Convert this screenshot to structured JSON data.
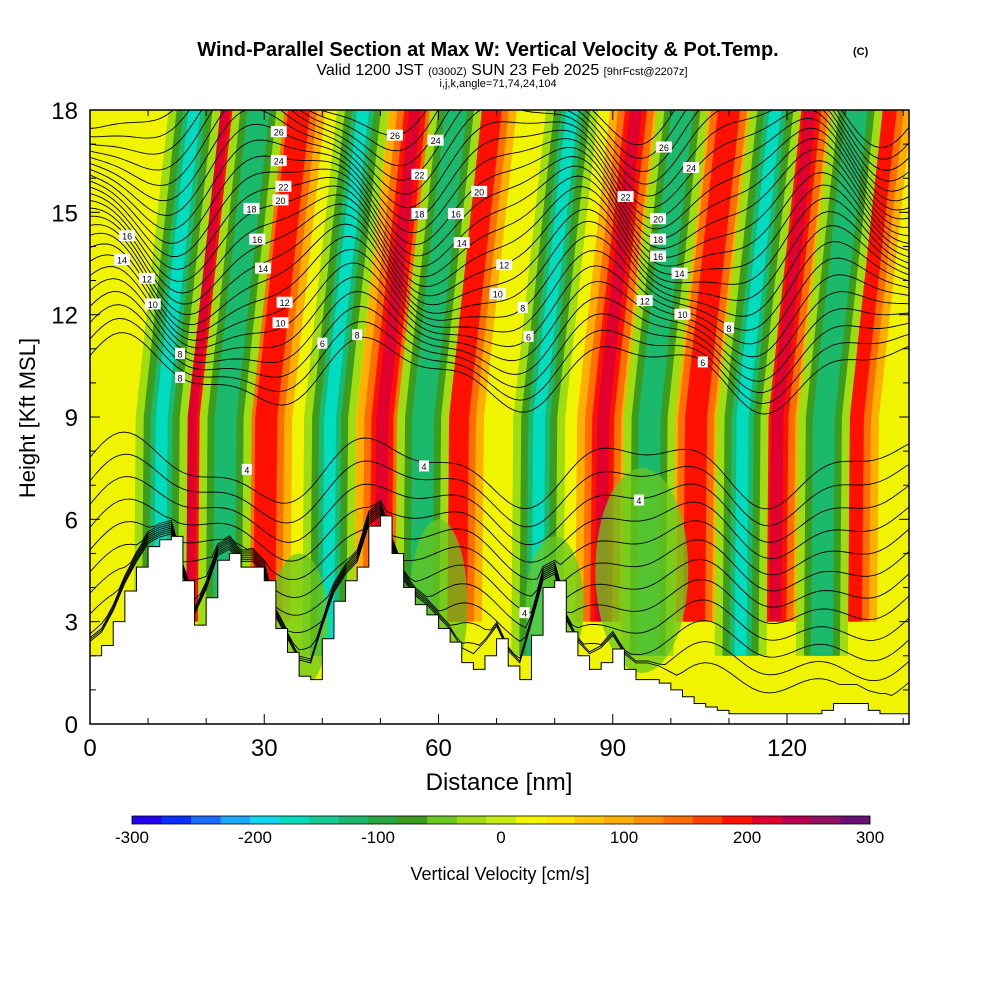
{
  "chart_data": {
    "type": "heatmap",
    "title": "Wind-Parallel Section at Max W: Vertical Velocity & Pot.Temp.",
    "title_mark": "(C)",
    "subtitle_parts": [
      "Valid 1200 JST",
      "(0300Z)",
      "SUN 23 Feb 2025",
      "[9hrFcst@2207z]"
    ],
    "index_line": "i,j,k,angle=71,74,24,104",
    "xlabel": "Distance [nm]",
    "ylabel": "Height [Kft MSL]",
    "xlim": [
      0,
      141
    ],
    "ylim": [
      0,
      18
    ],
    "x_ticks": [
      0,
      30,
      60,
      90,
      120
    ],
    "y_ticks": [
      0,
      3,
      6,
      9,
      12,
      15,
      18
    ],
    "fill_variable": "Vertical Velocity [cm/s]",
    "contour_variable": "Potential temperature (labelled contours)",
    "colorbar": {
      "label": "Vertical Velocity [cm/s]",
      "range": [
        -300,
        300
      ],
      "ticks": [
        "-300",
        "-200",
        "-100",
        "0",
        "100",
        "200",
        "300"
      ],
      "colors": [
        "#2400f0",
        "#0a30ff",
        "#1a6cff",
        "#1aa8ff",
        "#12d8f2",
        "#00dcc0",
        "#16cc96",
        "#1ab96c",
        "#27a640",
        "#3c9c20",
        "#6ac81e",
        "#9fdc10",
        "#c8ee10",
        "#f5f500",
        "#ffe600",
        "#ffc800",
        "#ffaf00",
        "#ff9000",
        "#ff6e00",
        "#ff4200",
        "#ff1000",
        "#e00030",
        "#b80050",
        "#901064",
        "#681078"
      ]
    },
    "grid": false,
    "legend": "bottom colorbar",
    "updraft_columns_nm": [
      17,
      30,
      50,
      63,
      88,
      104,
      118,
      131
    ],
    "downdraft_columns_nm": [
      12,
      23,
      41,
      57,
      77,
      96,
      112,
      126
    ],
    "terrain_profile": {
      "x": [
        0,
        2,
        4,
        6,
        8,
        10,
        12,
        14,
        16,
        18,
        20,
        22,
        24,
        26,
        28,
        30,
        32,
        34,
        36,
        38,
        40,
        42,
        44,
        46,
        48,
        50,
        52,
        54,
        56,
        58,
        60,
        62,
        64,
        66,
        68,
        70,
        72,
        74,
        76,
        78,
        80,
        82,
        84,
        86,
        88,
        90,
        92,
        94,
        96,
        98,
        100,
        102,
        104,
        106,
        108,
        110,
        112,
        114,
        116,
        118,
        120,
        122,
        124,
        126,
        128,
        130,
        132,
        134,
        136,
        138,
        140
      ],
      "y": [
        2.0,
        2.3,
        3.0,
        3.9,
        4.6,
        5.2,
        5.4,
        5.5,
        4.2,
        2.9,
        3.7,
        4.8,
        5.0,
        4.6,
        4.6,
        4.2,
        2.8,
        2.1,
        1.4,
        1.3,
        2.5,
        3.6,
        4.2,
        4.6,
        5.8,
        6.1,
        5.0,
        4.0,
        3.5,
        3.2,
        2.8,
        2.4,
        1.8,
        1.6,
        2.0,
        2.5,
        1.7,
        1.3,
        2.6,
        4.0,
        4.2,
        2.7,
        2.0,
        1.6,
        1.8,
        2.2,
        1.6,
        1.3,
        1.3,
        1.2,
        1.0,
        0.8,
        0.6,
        0.5,
        0.4,
        0.3,
        0.3,
        0.3,
        0.3,
        0.3,
        0.3,
        0.3,
        0.3,
        0.4,
        0.6,
        0.6,
        0.6,
        0.4,
        0.3,
        0.3,
        0.3
      ]
    },
    "contour_labels": [
      {
        "text": "26",
        "x": 32.5,
        "y": 17.35
      },
      {
        "text": "24",
        "x": 32.5,
        "y": 16.5
      },
      {
        "text": "22",
        "x": 33.3,
        "y": 15.75
      },
      {
        "text": "20",
        "x": 32.8,
        "y": 15.35
      },
      {
        "text": "18",
        "x": 27.8,
        "y": 15.1
      },
      {
        "text": "16",
        "x": 28.8,
        "y": 14.2
      },
      {
        "text": "14",
        "x": 29.8,
        "y": 13.35
      },
      {
        "text": "12",
        "x": 33.5,
        "y": 12.35
      },
      {
        "text": "10",
        "x": 32.8,
        "y": 11.75
      },
      {
        "text": "16",
        "x": 6.4,
        "y": 14.3
      },
      {
        "text": "14",
        "x": 5.5,
        "y": 13.6
      },
      {
        "text": "12",
        "x": 9.8,
        "y": 13.05
      },
      {
        "text": "10",
        "x": 10.8,
        "y": 12.3
      },
      {
        "text": "8",
        "x": 15.5,
        "y": 10.85
      },
      {
        "text": "8",
        "x": 15.5,
        "y": 10.15
      },
      {
        "text": "6",
        "x": 40.0,
        "y": 11.15
      },
      {
        "text": "8",
        "x": 46.0,
        "y": 11.4
      },
      {
        "text": "26",
        "x": 52.5,
        "y": 17.25
      },
      {
        "text": "24",
        "x": 59.5,
        "y": 17.1
      },
      {
        "text": "22",
        "x": 56.7,
        "y": 16.1
      },
      {
        "text": "20",
        "x": 67.0,
        "y": 15.6
      },
      {
        "text": "18",
        "x": 56.7,
        "y": 14.95
      },
      {
        "text": "16",
        "x": 63.0,
        "y": 14.95
      },
      {
        "text": "14",
        "x": 64.0,
        "y": 14.1
      },
      {
        "text": "12",
        "x": 71.3,
        "y": 13.45
      },
      {
        "text": "10",
        "x": 70.2,
        "y": 12.6
      },
      {
        "text": "8",
        "x": 74.5,
        "y": 12.2
      },
      {
        "text": "6",
        "x": 75.5,
        "y": 11.35
      },
      {
        "text": "26",
        "x": 98.8,
        "y": 16.9
      },
      {
        "text": "24",
        "x": 103.5,
        "y": 16.3
      },
      {
        "text": "22",
        "x": 92.2,
        "y": 15.45
      },
      {
        "text": "20",
        "x": 97.8,
        "y": 14.8
      },
      {
        "text": "18",
        "x": 97.8,
        "y": 14.2
      },
      {
        "text": "16",
        "x": 97.8,
        "y": 13.7
      },
      {
        "text": "14",
        "x": 101.5,
        "y": 13.2
      },
      {
        "text": "12",
        "x": 95.5,
        "y": 12.4
      },
      {
        "text": "10",
        "x": 102.0,
        "y": 12.0
      },
      {
        "text": "8",
        "x": 110.0,
        "y": 11.6
      },
      {
        "text": "6",
        "x": 105.5,
        "y": 10.6
      },
      {
        "text": "4",
        "x": 27.0,
        "y": 7.45
      },
      {
        "text": "4",
        "x": 57.5,
        "y": 7.55
      },
      {
        "text": "4",
        "x": 94.5,
        "y": 6.55
      },
      {
        "text": "4",
        "x": 74.8,
        "y": 3.25
      }
    ]
  }
}
